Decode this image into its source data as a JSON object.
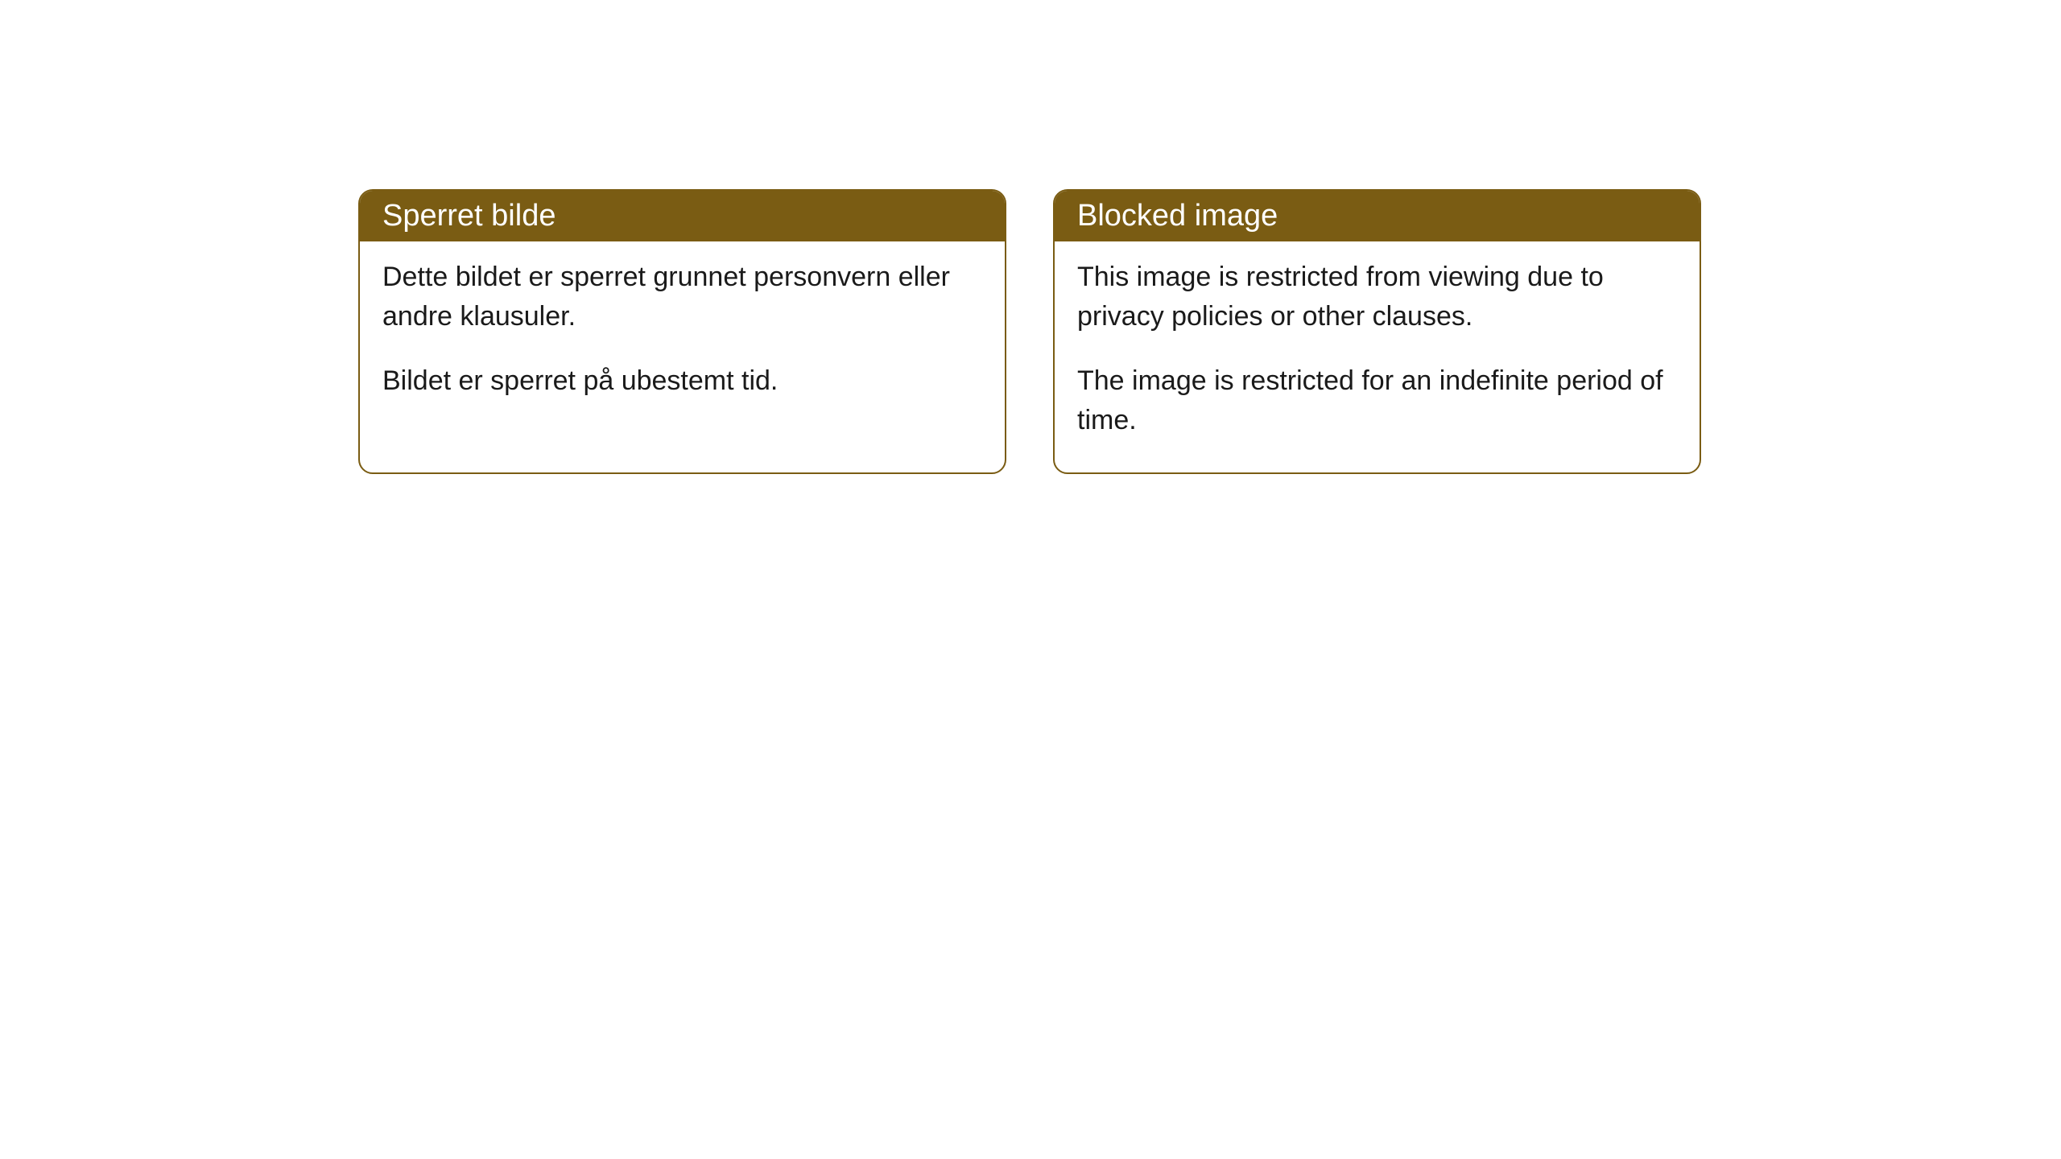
{
  "cards": [
    {
      "title": "Sperret bilde",
      "paragraph1": "Dette bildet er sperret grunnet personvern eller andre klausuler.",
      "paragraph2": "Bildet er sperret på ubestemt tid."
    },
    {
      "title": "Blocked image",
      "paragraph1": "This image is restricted from viewing due to privacy policies or other clauses.",
      "paragraph2": "The image is restricted for an indefinite period of time."
    }
  ],
  "style": {
    "header_background": "#7a5c13",
    "header_text_color": "#ffffff",
    "border_color": "#7a5c13",
    "body_background": "#ffffff",
    "body_text_color": "#1a1a1a",
    "border_radius": 18,
    "title_fontsize": 38,
    "body_fontsize": 34
  }
}
